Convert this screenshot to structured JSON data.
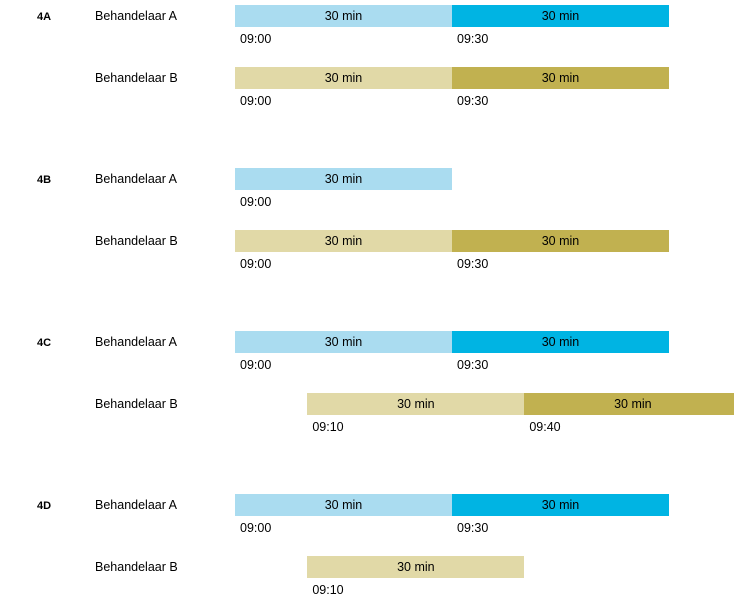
{
  "colors": {
    "a_light": "#aadcf0",
    "a_dark": "#00b4e3",
    "b_light": "#e1d9a7",
    "b_dark": "#c1b150"
  },
  "groups": [
    {
      "label": "4A",
      "rows": [
        {
          "label": "Behandelaar A",
          "bars": [
            {
              "text": "30 min",
              "color": "a_light",
              "start": "09:00",
              "startMin": 0
            },
            {
              "text": "30 min",
              "color": "a_dark",
              "start": "09:30",
              "startMin": 30
            }
          ]
        },
        {
          "label": "Behandelaar B",
          "bars": [
            {
              "text": "30 min",
              "color": "b_light",
              "start": "09:00",
              "startMin": 0
            },
            {
              "text": "30 min",
              "color": "b_dark",
              "start": "09:30",
              "startMin": 30
            }
          ]
        }
      ]
    },
    {
      "label": "4B",
      "rows": [
        {
          "label": "Behandelaar A",
          "bars": [
            {
              "text": "30 min",
              "color": "a_light",
              "start": "09:00",
              "startMin": 0
            }
          ]
        },
        {
          "label": "Behandelaar B",
          "bars": [
            {
              "text": "30 min",
              "color": "b_light",
              "start": "09:00",
              "startMin": 0
            },
            {
              "text": "30 min",
              "color": "b_dark",
              "start": "09:30",
              "startMin": 30
            }
          ]
        }
      ]
    },
    {
      "label": "4C",
      "rows": [
        {
          "label": "Behandelaar A",
          "bars": [
            {
              "text": "30 min",
              "color": "a_light",
              "start": "09:00",
              "startMin": 0
            },
            {
              "text": "30 min",
              "color": "a_dark",
              "start": "09:30",
              "startMin": 30
            }
          ]
        },
        {
          "label": "Behandelaar B",
          "bars": [
            {
              "text": "30 min",
              "color": "b_light",
              "start": "09:10",
              "startMin": 10
            },
            {
              "text": "30 min",
              "color": "b_dark",
              "start": "09:40",
              "startMin": 40
            }
          ]
        }
      ]
    },
    {
      "label": "4D",
      "rows": [
        {
          "label": "Behandelaar A",
          "bars": [
            {
              "text": "30 min",
              "color": "a_light",
              "start": "09:00",
              "startMin": 0
            },
            {
              "text": "30 min",
              "color": "a_dark",
              "start": "09:30",
              "startMin": 30
            }
          ]
        },
        {
          "label": "Behandelaar B",
          "bars": [
            {
              "text": "30 min",
              "color": "b_light",
              "start": "09:10",
              "startMin": 10
            }
          ]
        }
      ]
    }
  ]
}
